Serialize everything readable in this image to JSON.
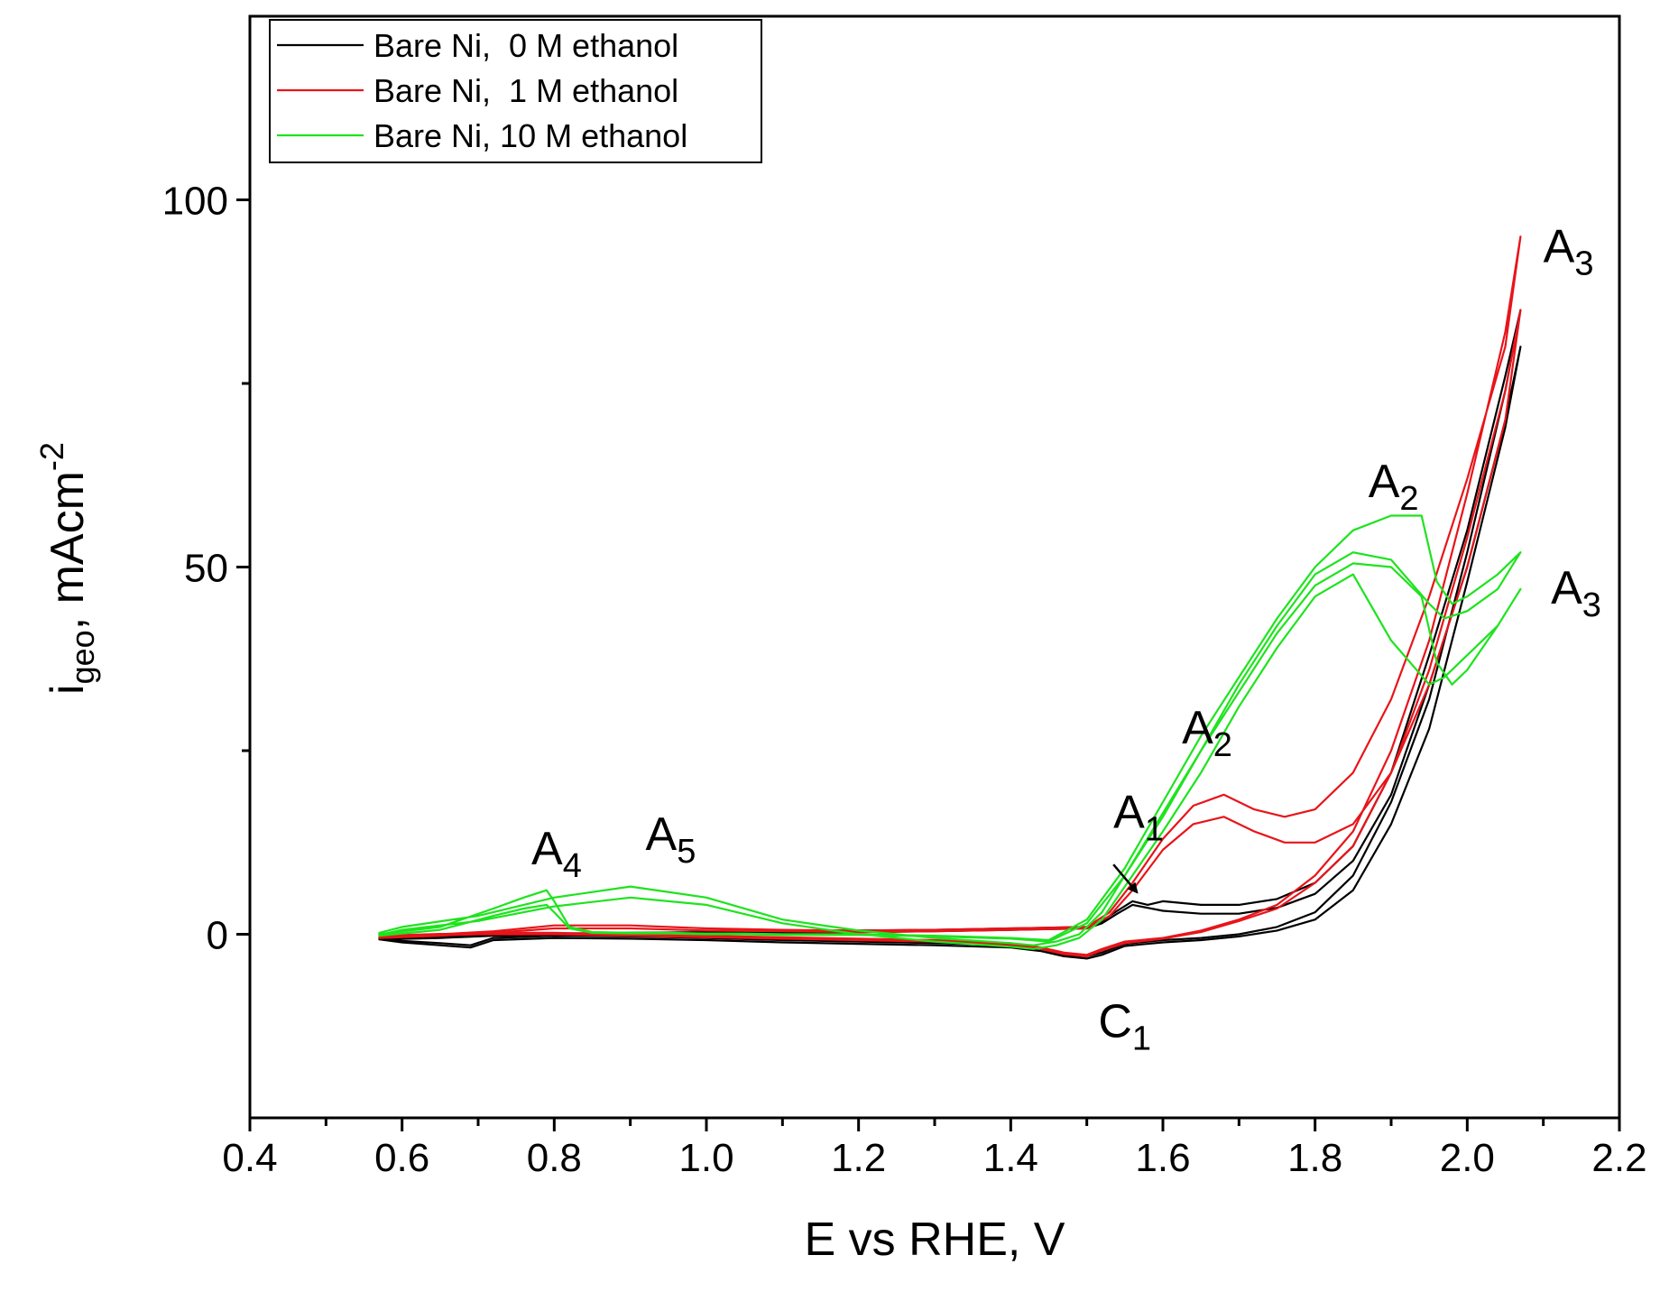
{
  "chart_data": {
    "type": "line",
    "title": "",
    "xlabel": "E vs RHE, V",
    "ylabel": {
      "base": "i",
      "sub": "geo",
      "rest": ", mAcm",
      "sup": "-2"
    },
    "xlim": [
      0.4,
      2.2
    ],
    "ylim": [
      -25,
      125
    ],
    "x_ticks": [
      0.4,
      0.6,
      0.8,
      1.0,
      1.2,
      1.4,
      1.6,
      1.8,
      2.0,
      2.2
    ],
    "x_tick_labels": [
      "0.4",
      "0.6",
      "0.8",
      "1.0",
      "1.2",
      "1.4",
      "1.6",
      "1.8",
      "2.0",
      "2.2"
    ],
    "x_minor_ticks": [
      0.5,
      0.7,
      0.9,
      1.1,
      1.3,
      1.5,
      1.7,
      1.9,
      2.1
    ],
    "y_ticks": [
      0,
      50,
      100
    ],
    "y_tick_labels": [
      "0",
      "50",
      "100"
    ],
    "y_minor_ticks": [
      25,
      75
    ],
    "grid": false,
    "legend_position": "top-left",
    "series": [
      {
        "name": "Bare Ni,  0 M ethanol",
        "color": "#000000",
        "cycles": [
          {
            "x": [
              0.57,
              0.65,
              0.72,
              0.8,
              0.9,
              1.0,
              1.1,
              1.2,
              1.3,
              1.4,
              1.5,
              1.52,
              1.54,
              1.56,
              1.58,
              1.6,
              1.65,
              1.7,
              1.75,
              1.8,
              1.85,
              1.9,
              1.95,
              2.0,
              2.05,
              2.07,
              2.05,
              2.0,
              1.95,
              1.9,
              1.85,
              1.8,
              1.75,
              1.7,
              1.65,
              1.6,
              1.55,
              1.52,
              1.5,
              1.47,
              1.44,
              1.4,
              1.3,
              1.2,
              1.1,
              1.0,
              0.9,
              0.8,
              0.72,
              0.69,
              0.65,
              0.6,
              0.57
            ],
            "y": [
              -0.5,
              -0.3,
              0.0,
              0.1,
              0.2,
              0.3,
              0.4,
              0.5,
              0.6,
              0.8,
              1.0,
              1.8,
              3.2,
              4.5,
              4.0,
              4.5,
              4.0,
              4.0,
              4.8,
              7.0,
              12.0,
              22.0,
              38.0,
              55.0,
              76.0,
              85.0,
              74.0,
              52.0,
              32.0,
              18.0,
              8.0,
              3.0,
              1.0,
              0.0,
              -0.5,
              -0.8,
              -1.3,
              -2.5,
              -3.0,
              -2.8,
              -2.0,
              -1.5,
              -1.2,
              -1.0,
              -0.8,
              -0.5,
              -0.3,
              -0.2,
              -0.5,
              -1.5,
              -1.2,
              -0.9,
              -0.5
            ]
          },
          {
            "x": [
              0.57,
              0.65,
              0.72,
              0.8,
              0.9,
              1.0,
              1.1,
              1.2,
              1.3,
              1.4,
              1.5,
              1.52,
              1.54,
              1.56,
              1.58,
              1.6,
              1.65,
              1.7,
              1.75,
              1.8,
              1.85,
              1.9,
              1.95,
              2.0,
              2.05,
              2.07,
              2.05,
              2.0,
              1.95,
              1.9,
              1.85,
              1.8,
              1.75,
              1.7,
              1.65,
              1.6,
              1.55,
              1.52,
              1.5,
              1.47,
              1.44,
              1.4,
              1.3,
              1.2,
              1.1,
              1.0,
              0.9,
              0.8,
              0.72,
              0.69,
              0.65,
              0.6,
              0.57
            ],
            "y": [
              -0.7,
              -0.5,
              -0.2,
              -0.1,
              0.0,
              0.1,
              0.2,
              0.3,
              0.4,
              0.6,
              0.8,
              1.5,
              2.8,
              4.0,
              3.6,
              3.2,
              2.8,
              2.8,
              3.6,
              5.5,
              10.0,
              19.0,
              34.0,
              50.0,
              70.0,
              80.0,
              69.0,
              48.0,
              28.0,
              15.0,
              6.0,
              2.0,
              0.5,
              -0.3,
              -0.8,
              -1.1,
              -1.6,
              -2.8,
              -3.3,
              -3.0,
              -2.3,
              -1.8,
              -1.5,
              -1.3,
              -1.1,
              -0.8,
              -0.6,
              -0.5,
              -0.8,
              -1.8,
              -1.5,
              -1.1,
              -0.7
            ]
          }
        ]
      },
      {
        "name": "Bare Ni,  1 M ethanol",
        "color": "#e8141a",
        "cycles": [
          {
            "x": [
              0.57,
              0.65,
              0.72,
              0.8,
              0.9,
              1.0,
              1.1,
              1.2,
              1.3,
              1.4,
              1.5,
              1.53,
              1.56,
              1.6,
              1.64,
              1.68,
              1.72,
              1.76,
              1.8,
              1.85,
              1.9,
              1.95,
              2.0,
              2.05,
              2.07,
              2.05,
              2.0,
              1.95,
              1.9,
              1.85,
              1.8,
              1.75,
              1.7,
              1.65,
              1.6,
              1.55,
              1.52,
              1.5,
              1.47,
              1.44,
              1.4,
              1.3,
              1.2,
              1.1,
              1.0,
              0.9,
              0.8,
              0.7,
              0.6,
              0.57
            ],
            "y": [
              -0.3,
              0.0,
              0.4,
              1.2,
              1.2,
              0.8,
              0.6,
              0.5,
              0.6,
              0.8,
              1.0,
              3.0,
              7.0,
              13.0,
              17.5,
              19.0,
              17.0,
              16.0,
              17.0,
              22.0,
              32.0,
              46.0,
              62.0,
              80.0,
              95.0,
              82.0,
              60.0,
              40.0,
              25.0,
              14.0,
              8.0,
              4.0,
              2.0,
              0.5,
              -0.5,
              -1.0,
              -2.0,
              -2.8,
              -2.5,
              -1.8,
              -1.2,
              -0.8,
              -0.6,
              -0.4,
              -0.2,
              0.0,
              0.2,
              0.2,
              -0.1,
              -0.3
            ]
          },
          {
            "x": [
              0.57,
              0.65,
              0.72,
              0.8,
              0.9,
              1.0,
              1.1,
              1.2,
              1.3,
              1.4,
              1.5,
              1.53,
              1.56,
              1.6,
              1.64,
              1.68,
              1.72,
              1.76,
              1.8,
              1.85,
              1.9,
              1.95,
              2.0,
              2.05,
              2.07,
              2.05,
              2.0,
              1.95,
              1.9,
              1.85,
              1.8,
              1.75,
              1.7,
              1.65,
              1.6,
              1.55,
              1.52,
              1.5,
              1.47,
              1.44,
              1.4,
              1.3,
              1.2,
              1.1,
              1.0,
              0.9,
              0.8,
              0.7,
              0.6,
              0.57
            ],
            "y": [
              -0.5,
              -0.2,
              0.2,
              0.8,
              0.8,
              0.5,
              0.4,
              0.3,
              0.4,
              0.6,
              0.8,
              2.5,
              6.0,
              11.5,
              15.0,
              16.0,
              14.0,
              12.5,
              12.5,
              15.0,
              22.0,
              34.0,
              50.0,
              70.0,
              85.0,
              74.0,
              54.0,
              36.0,
              22.0,
              12.0,
              7.0,
              3.5,
              1.8,
              0.3,
              -0.6,
              -1.2,
              -2.2,
              -3.0,
              -2.7,
              -2.0,
              -1.4,
              -1.0,
              -0.8,
              -0.6,
              -0.4,
              -0.2,
              0.0,
              0.0,
              -0.3,
              -0.5
            ]
          }
        ]
      },
      {
        "name": "Bare Ni, 10 M ethanol",
        "color": "#1ee31e",
        "cycles": [
          {
            "x": [
              0.57,
              0.65,
              0.72,
              0.76,
              0.79,
              0.8,
              0.82,
              0.85,
              0.9,
              0.95,
              1.0,
              1.05,
              1.1,
              1.15,
              1.2,
              1.3,
              1.4,
              1.45,
              1.5,
              1.55,
              1.6,
              1.65,
              1.7,
              1.75,
              1.8,
              1.85,
              1.9,
              1.94,
              1.96,
              1.98,
              2.0,
              2.04,
              2.07,
              2.04,
              2.0,
              1.97,
              1.95,
              1.9,
              1.85,
              1.8,
              1.75,
              1.7,
              1.65,
              1.6,
              1.55,
              1.52,
              1.49,
              1.46,
              1.43,
              1.4,
              1.3,
              1.2,
              1.1,
              1.0,
              0.9,
              0.8,
              0.7,
              0.6,
              0.57
            ],
            "y": [
              0.0,
              1.0,
              3.5,
              5.0,
              6.0,
              4.5,
              1.0,
              0.3,
              0.2,
              0.2,
              0.1,
              0.1,
              0.0,
              0.0,
              0.0,
              -0.2,
              -0.5,
              -0.8,
              2.0,
              9.0,
              18.0,
              27.0,
              35.0,
              43.0,
              50.0,
              55.0,
              57.0,
              57.0,
              48.0,
              45.0,
              46.0,
              49.0,
              52.0,
              47.0,
              44.0,
              43.0,
              45.0,
              51.0,
              52.0,
              49.0,
              42.0,
              34.0,
              25.0,
              16.0,
              8.0,
              3.0,
              0.0,
              -1.0,
              -1.5,
              -1.2,
              -0.5,
              0.5,
              2.0,
              5.0,
              6.5,
              5.0,
              2.5,
              1.0,
              0.2
            ]
          },
          {
            "x": [
              0.57,
              0.65,
              0.72,
              0.76,
              0.79,
              0.8,
              0.82,
              0.85,
              0.9,
              0.95,
              1.0,
              1.05,
              1.1,
              1.15,
              1.2,
              1.3,
              1.4,
              1.45,
              1.5,
              1.55,
              1.6,
              1.65,
              1.7,
              1.75,
              1.8,
              1.85,
              1.9,
              1.94,
              1.96,
              1.98,
              2.0,
              2.04,
              2.07,
              2.04,
              2.0,
              1.97,
              1.95,
              1.9,
              1.85,
              1.8,
              1.75,
              1.7,
              1.65,
              1.6,
              1.55,
              1.52,
              1.49,
              1.46,
              1.43,
              1.4,
              1.3,
              1.2,
              1.1,
              1.0,
              0.9,
              0.8,
              0.7,
              0.6,
              0.57
            ],
            "y": [
              -0.2,
              0.6,
              2.5,
              3.5,
              4.0,
              3.0,
              0.8,
              0.2,
              0.1,
              0.1,
              0.0,
              0.0,
              -0.1,
              -0.1,
              -0.1,
              -0.3,
              -0.6,
              -1.0,
              1.5,
              8.0,
              16.5,
              25.0,
              33.0,
              41.0,
              47.5,
              50.5,
              50.0,
              46.0,
              37.0,
              34.0,
              36.0,
              42.0,
              47.0,
              42.0,
              38.0,
              35.0,
              34.0,
              40.0,
              49.0,
              46.0,
              39.0,
              31.0,
              22.0,
              14.0,
              6.5,
              2.0,
              -0.5,
              -1.5,
              -2.0,
              -1.7,
              -1.0,
              0.0,
              1.5,
              4.0,
              5.0,
              3.8,
              1.8,
              0.6,
              -0.1
            ]
          }
        ]
      }
    ],
    "annotations": [
      {
        "id": "a4",
        "letter": "A",
        "sub": "4",
        "x": 0.77,
        "y": 9.5
      },
      {
        "id": "a5",
        "letter": "A",
        "sub": "5",
        "x": 0.92,
        "y": 11.5
      },
      {
        "id": "a1",
        "letter": "A",
        "sub": "1",
        "x": 1.535,
        "y": 14.5
      },
      {
        "id": "c1",
        "letter": "C",
        "sub": "1",
        "x": 1.515,
        "y": -14.0
      },
      {
        "id": "a2-lower",
        "letter": "A",
        "sub": "2",
        "x": 1.625,
        "y": 26.0
      },
      {
        "id": "a2-upper",
        "letter": "A",
        "sub": "2",
        "x": 1.87,
        "y": 59.5
      },
      {
        "id": "a3-upper",
        "letter": "A",
        "sub": "3",
        "x": 2.1,
        "y": 91.5
      },
      {
        "id": "a3-lower",
        "letter": "A",
        "sub": "3",
        "x": 2.11,
        "y": 45.0
      }
    ],
    "arrow": {
      "from": [
        1.535,
        9.5
      ],
      "to": [
        1.566,
        5.7
      ]
    }
  }
}
